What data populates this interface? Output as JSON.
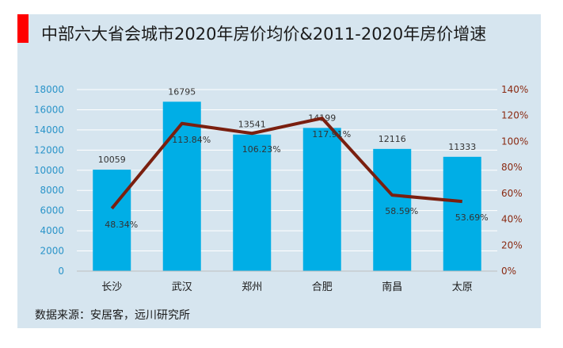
{
  "title": "中部六大省会城市2020年房价均价&2011-2020年房价增速",
  "source": "数据来源：安居客，远川研究所",
  "colors": {
    "accent": "#ff0000",
    "panel": "#d6e5ef",
    "bar": "#00aee6",
    "line": "#7a1f0f",
    "left_axis_text": "#2b94c9",
    "right_axis_text": "#8a2a12"
  },
  "chart_data": {
    "type": "bar",
    "categories": [
      "长沙",
      "武汉",
      "郑州",
      "合肥",
      "南昌",
      "太原"
    ],
    "series": [
      {
        "values": [
          10059,
          16795,
          13541,
          14199,
          12116,
          11333
        ],
        "axis": "left",
        "kind": "bar",
        "labels": [
          "10059",
          "16795",
          "13541",
          "14199",
          "12116",
          "11333"
        ]
      },
      {
        "values": [
          48.34,
          113.84,
          106.23,
          117.91,
          58.59,
          53.69
        ],
        "axis": "right",
        "kind": "line",
        "labels": [
          "48.34%",
          "113.84%",
          "106.23%",
          "117.91%",
          "58.59%",
          "53.69%"
        ]
      }
    ],
    "ylim": [
      0,
      18000
    ],
    "y_ticks": [
      "0",
      "2000",
      "4000",
      "6000",
      "8000",
      "10000",
      "12000",
      "14000",
      "16000",
      "18000"
    ],
    "y2lim": [
      0,
      140
    ],
    "y2_ticks": [
      "0%",
      "20%",
      "40%",
      "60%",
      "80%",
      "100%",
      "120%",
      "140%"
    ],
    "grid": true
  }
}
